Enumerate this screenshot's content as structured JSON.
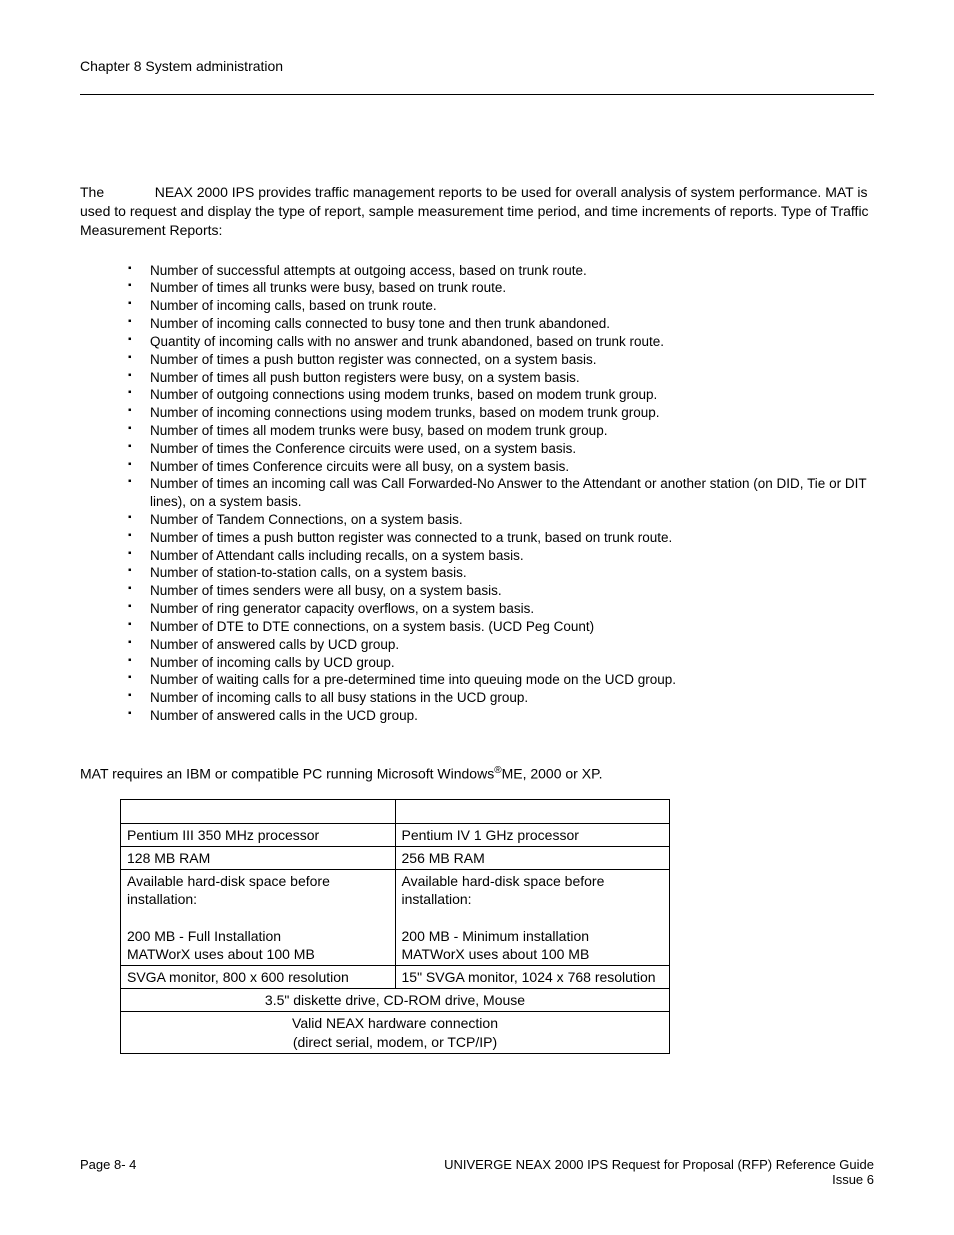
{
  "header": {
    "chapter": "Chapter 8   System administration"
  },
  "intro": {
    "text_prefix": "The ",
    "brand": "NEAX",
    "text_mid": " 2000 IPS provides traffic management reports to be used for overall analysis of system performance. MAT        is used to request and display the type of report, sample measurement time period, and time increments of reports. Type of Traffic Measurement Reports:"
  },
  "bullets": [
    "Number of successful attempts at outgoing access, based on trunk route.",
    "Number of times all trunks were busy, based on trunk route.",
    "Number of incoming calls, based on trunk route.",
    "Number of incoming calls connected to busy tone and then trunk abandoned.",
    "Quantity of incoming calls with no answer and trunk abandoned, based on trunk route.",
    "Number of times a push button register was connected, on a system basis.",
    "Number of times all push button registers were busy, on a system basis.",
    "Number of outgoing connections using modem trunks, based on modem trunk group.",
    "Number of incoming connections using modem trunks, based on modem trunk group.",
    "Number of times all modem trunks were busy, based on modem trunk group.",
    "Number of times the Conference circuits were used, on a system basis.",
    "Number of times Conference circuits were all busy, on a system basis.",
    "Number of times an incoming call was Call Forwarded-No Answer to the Attendant or another station (on DID, Tie or DIT lines), on a system basis.",
    "Number of Tandem Connections, on a system basis.",
    "Number of times a push button register was connected to a trunk, based on trunk route.",
    "Number of Attendant calls including recalls, on a system basis.",
    "Number of station-to-station calls, on a system basis.",
    "Number of times senders were all busy, on a system basis.",
    "Number of ring generator capacity overflows, on a system basis.",
    "Number of DTE to DTE connections, on a system basis. (UCD Peg Count)",
    "Number of answered calls by UCD group.",
    "Number of incoming calls by UCD group.",
    "Number of waiting calls for a pre-determined time into queuing mode on the UCD group.",
    "Number of incoming calls to all busy stations in the UCD group.",
    "Number of answered calls in the UCD group."
  ],
  "mat_req": {
    "prefix": "MAT        requires an IBM or compatible PC running Microsoft Windows",
    "reg": "®",
    "suffix": "ME, 2000 or XP."
  },
  "table": {
    "rows": [
      {
        "left": "",
        "right": "",
        "type": "two"
      },
      {
        "left": "Pentium III 350 MHz processor",
        "right": "Pentium IV 1 GHz processor",
        "type": "two"
      },
      {
        "left": "128 MB RAM",
        "right": "256 MB RAM",
        "type": "two"
      },
      {
        "left": "Available hard-disk space before installation:\n\n200 MB - Full Installation\nMATWorX uses about 100 MB",
        "right": "Available hard-disk space before installation:\n\n200 MB - Minimum installation\nMATWorX uses about 100 MB",
        "type": "two"
      },
      {
        "left": "SVGA monitor, 800 x 600 resolution",
        "right": "15\" SVGA monitor, 1024 x 768 resolution",
        "type": "two"
      },
      {
        "full": "3.5\" diskette drive, CD-ROM drive, Mouse",
        "type": "one"
      },
      {
        "full": "Valid NEAX hardware connection\n(direct serial, modem, or TCP/IP)",
        "type": "one"
      }
    ]
  },
  "footer": {
    "page": "Page 8- 4",
    "title_prefix": "UNIVERGE ",
    "title_brand": "NEAX",
    "title_suffix": " 2000 IPS Request for Proposal (RFP) Reference Guide",
    "issue": "Issue 6"
  }
}
